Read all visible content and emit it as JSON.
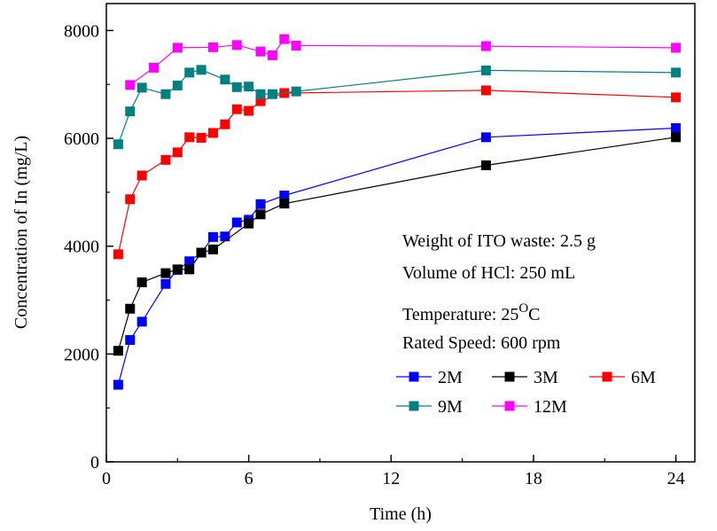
{
  "chart_data": {
    "type": "line",
    "title": "",
    "xlabel": "Time (h)",
    "ylabel": "Concentration of In (mg/L)",
    "xlim": [
      0,
      24.8
    ],
    "ylim": [
      0,
      8500
    ],
    "xticks": [
      0,
      6,
      12,
      18,
      24
    ],
    "yticks": [
      0,
      2000,
      4000,
      6000,
      8000
    ],
    "grid": false,
    "legend_position": "lower-right",
    "series": [
      {
        "name": "2M",
        "color": "#0000ff",
        "x": [
          0.5,
          1,
          1.5,
          2.5,
          3,
          3.5,
          4,
          4.5,
          5,
          5.5,
          6,
          6.5,
          7.5,
          16,
          24
        ],
        "y": [
          1430,
          2260,
          2600,
          3300,
          3560,
          3720,
          3880,
          4170,
          4180,
          4440,
          4490,
          4780,
          4940,
          6020,
          6190
        ]
      },
      {
        "name": "3M",
        "color": "#000000",
        "x": [
          0.5,
          1,
          1.5,
          2.5,
          3,
          3.5,
          4,
          4.5,
          6,
          6.5,
          7.5,
          16,
          24
        ],
        "y": [
          2060,
          2840,
          3330,
          3500,
          3570,
          3570,
          3880,
          3940,
          4420,
          4590,
          4790,
          5500,
          6020
        ]
      },
      {
        "name": "6M",
        "color": "#ff0000",
        "x": [
          0.5,
          1,
          1.5,
          2.5,
          3,
          3.5,
          4,
          4.5,
          5,
          5.5,
          6,
          6.5,
          7.5,
          16,
          24
        ],
        "y": [
          3850,
          4870,
          5310,
          5600,
          5740,
          6020,
          6010,
          6100,
          6260,
          6540,
          6510,
          6690,
          6840,
          6890,
          6760
        ]
      },
      {
        "name": "9M",
        "color": "#008080",
        "x": [
          0.5,
          1,
          1.5,
          2.5,
          3,
          3.5,
          4,
          5,
          5.5,
          6,
          6.5,
          7,
          8,
          16,
          24
        ],
        "y": [
          5890,
          6500,
          6940,
          6820,
          6980,
          7220,
          7270,
          7090,
          6950,
          6960,
          6820,
          6820,
          6870,
          7260,
          7220
        ]
      },
      {
        "name": "12M",
        "color": "#ff00ff",
        "x": [
          1,
          2,
          3,
          4.5,
          5.5,
          6.5,
          7,
          7.5,
          8,
          16,
          24
        ],
        "y": [
          6990,
          7310,
          7680,
          7690,
          7730,
          7610,
          7540,
          7840,
          7720,
          7710,
          7680
        ]
      }
    ],
    "annotations": {
      "weight": "Weight of ITO waste: 2.5 g",
      "volume": "Volume of HCl: 250 mL",
      "temperature_prefix": "Temperature: 25",
      "temperature_super": "O",
      "temperature_suffix": "C",
      "speed": "Rated Speed: 600 rpm"
    }
  }
}
